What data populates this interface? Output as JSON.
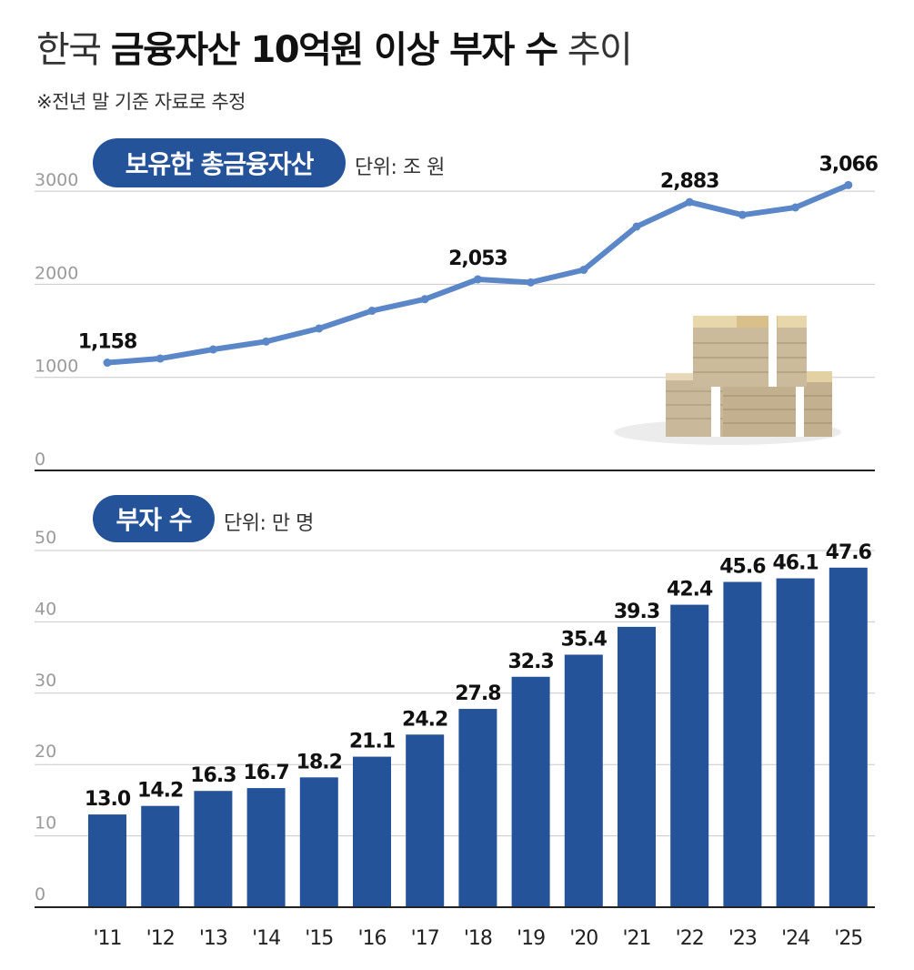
{
  "title": {
    "part1": "한국",
    "part2": "금융자산 10억원 이상 부자 수",
    "part3": "추이"
  },
  "subtitle": "※전년 말 기준 자료로 추정",
  "colors": {
    "line": "#5b87c8",
    "bar": "#24539a",
    "pill": "#24539a",
    "grid": "#c8c8c8",
    "axis": "#222222"
  },
  "chart_data": [
    {
      "type": "line",
      "title": "보유한 총금융자산",
      "unit_label": "단위: 조 원",
      "categories": [
        "'11",
        "'12",
        "'13",
        "'14",
        "'15",
        "'16",
        "'17",
        "'18",
        "'19",
        "'20",
        "'21",
        "'22",
        "'23",
        "'24",
        "'25"
      ],
      "values": [
        1158,
        1202,
        1300,
        1385,
        1525,
        1715,
        1840,
        2053,
        2020,
        2155,
        2620,
        2883,
        2745,
        2825,
        3066
      ],
      "data_labels": [
        {
          "index": 0,
          "text": "1,158"
        },
        {
          "index": 7,
          "text": "2,053"
        },
        {
          "index": 11,
          "text": "2,883"
        },
        {
          "index": 14,
          "text": "3,066"
        }
      ],
      "ylim": [
        0,
        3000
      ],
      "yticks": [
        0,
        1000,
        2000,
        3000
      ],
      "ytick_labels": [
        "0",
        "1000",
        "2000",
        "3000"
      ]
    },
    {
      "type": "bar",
      "title": "부자 수",
      "unit_label": "단위: 만 명",
      "categories": [
        "'11",
        "'12",
        "'13",
        "'14",
        "'15",
        "'16",
        "'17",
        "'18",
        "'19",
        "'20",
        "'21",
        "'22",
        "'23",
        "'24",
        "'25"
      ],
      "values": [
        13.0,
        14.2,
        16.3,
        16.7,
        18.2,
        21.1,
        24.2,
        27.8,
        32.3,
        35.4,
        39.3,
        42.4,
        45.6,
        46.1,
        47.6
      ],
      "value_labels": [
        "13.0",
        "14.2",
        "16.3",
        "16.7",
        "18.2",
        "21.1",
        "24.2",
        "27.8",
        "32.3",
        "35.4",
        "39.3",
        "42.4",
        "45.6",
        "46.1",
        "47.6"
      ],
      "ylim": [
        0,
        50
      ],
      "yticks": [
        0,
        10,
        20,
        30,
        40,
        50
      ],
      "ytick_labels": [
        "0",
        "10",
        "20",
        "30",
        "40",
        "50"
      ]
    }
  ]
}
